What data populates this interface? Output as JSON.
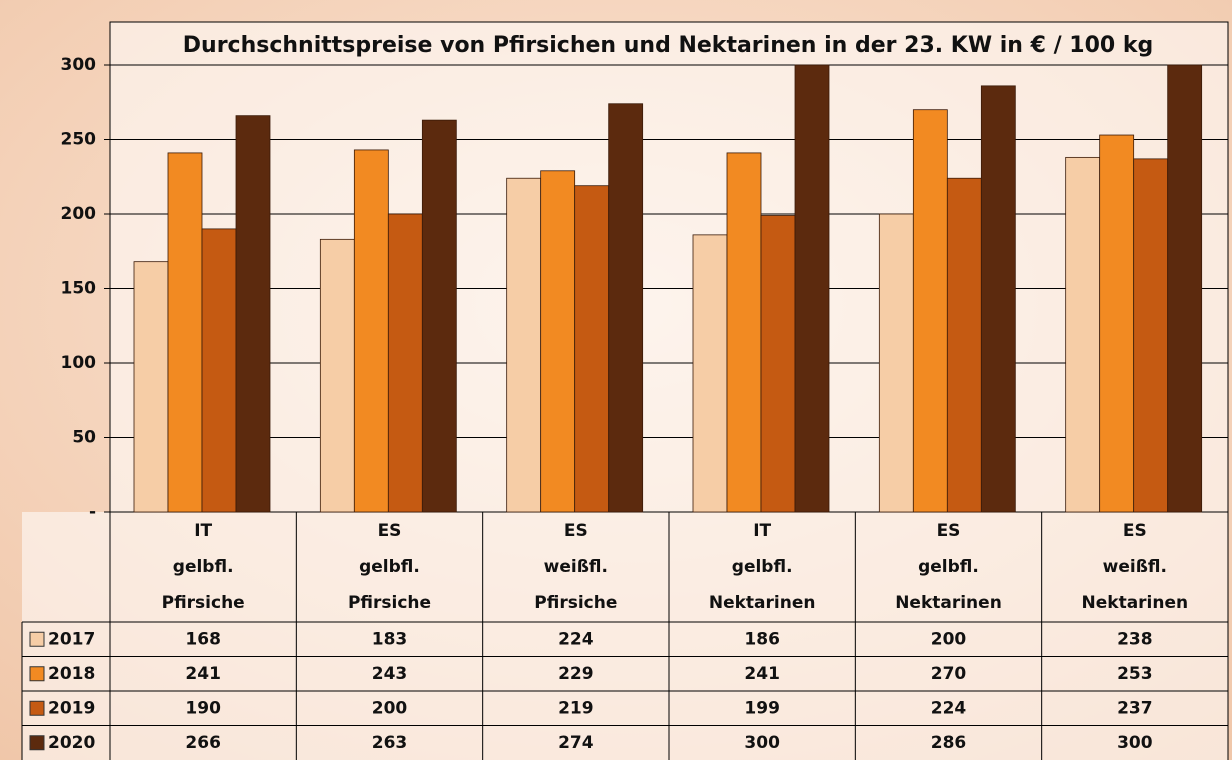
{
  "chart_data": {
    "type": "bar",
    "title": "Durchschnittspreise von Pfirsichen und Nektarinen in der 23. KW in € / 100 kg",
    "categories": [
      [
        "IT",
        "gelbfl.",
        "Pfirsiche"
      ],
      [
        "ES",
        "gelbfl.",
        "Pfirsiche"
      ],
      [
        "ES",
        "weißfl.",
        "Pfirsiche"
      ],
      [
        "IT",
        "gelbfl.",
        "Nektarinen"
      ],
      [
        "ES",
        "gelbfl.",
        "Nektarinen"
      ],
      [
        "ES",
        "weißfl.",
        "Nektarinen"
      ]
    ],
    "series": [
      {
        "name": "2017",
        "color": "#f6cda6",
        "values": [
          168,
          183,
          224,
          186,
          200,
          238
        ]
      },
      {
        "name": "2018",
        "color": "#f28a22",
        "values": [
          241,
          243,
          229,
          241,
          270,
          253
        ]
      },
      {
        "name": "2019",
        "color": "#c55a12",
        "values": [
          190,
          200,
          219,
          199,
          224,
          237
        ]
      },
      {
        "name": "2020",
        "color": "#5c2a0e",
        "values": [
          266,
          263,
          274,
          300,
          286,
          300
        ]
      }
    ],
    "ylim": [
      0,
      300
    ],
    "yticks": [
      {
        "value": 0,
        "label": "-"
      },
      50,
      100,
      150,
      200,
      250,
      300
    ],
    "grid": true
  }
}
